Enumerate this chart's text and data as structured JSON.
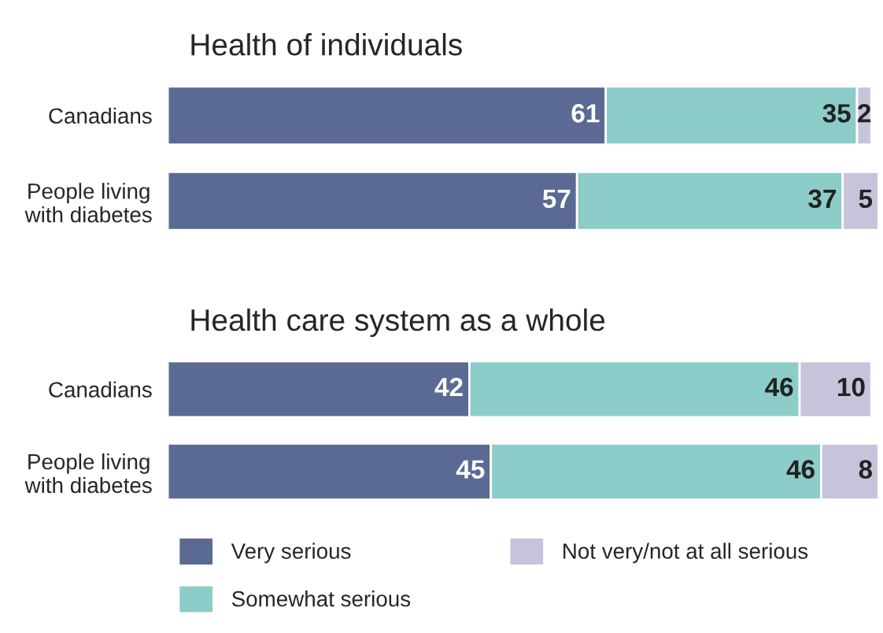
{
  "chart_data": [
    {
      "type": "bar",
      "title": "Health of individuals",
      "orientation": "horizontal",
      "stacked": true,
      "data_labels": true,
      "tick_labels": "y",
      "legend": false,
      "grid": false,
      "categories": [
        "Canadians",
        "People living\nwith diabetes"
      ],
      "series": [
        {
          "color": "#5a6a93",
          "values": [
            61,
            57
          ]
        },
        {
          "color": "#8cccc9",
          "values": [
            35,
            37
          ]
        },
        {
          "color": "#c5c4da",
          "values": [
            2,
            5
          ]
        }
      ]
    },
    {
      "type": "bar",
      "title": "Health care system as a whole",
      "orientation": "horizontal",
      "stacked": true,
      "data_labels": true,
      "tick_labels": "y",
      "legend": "bottom",
      "grid": false,
      "categories": [
        "Canadians",
        "People living\nwith diabetes"
      ],
      "series": [
        {
          "name": "Very serious",
          "color": "#5a6a93",
          "values": [
            42,
            45
          ]
        },
        {
          "name": "Somewhat serious",
          "color": "#8cccc9",
          "values": [
            46,
            46
          ]
        },
        {
          "name": "Not very/not at all serious",
          "color": "#c5c4da",
          "values": [
            10,
            8
          ]
        }
      ]
    }
  ]
}
